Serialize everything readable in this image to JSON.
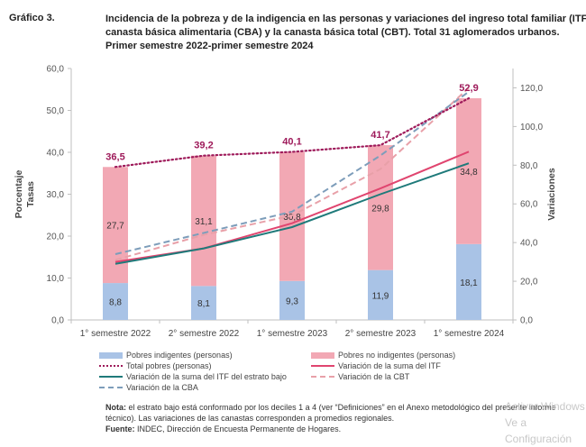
{
  "figure_label": "Gráfico 3.",
  "title_lines": [
    "Incidencia de la pobreza y de la indigencia en las personas y variaciones del ingreso total familiar (ITF), la",
    "canasta básica alimentaria (CBA) y la canasta básica total (CBT). Total 31 aglomerados urbanos.",
    "Primer semestre 2022-primer semestre 2024"
  ],
  "note": {
    "label": "Nota:",
    "text": " el estrato bajo está conformado por los deciles 1 a 4 (ver “Definiciones” en el Anexo metodológico del presente informe técnico). Las variaciones de las canastas corresponden a promedios regionales."
  },
  "source": {
    "label": "Fuente:",
    "text": " INDEC, Dirección de Encuesta Permanente de Hogares."
  },
  "watermark": [
    "Activar Windows",
    "Ve a Configuración"
  ],
  "chart_data": {
    "type": "bar",
    "categories": [
      "1° semestre 2022",
      "2° semestre 2022",
      "1° semestre 2023",
      "2° semestre 2023",
      "1° semestre 2024"
    ],
    "ylabel_left": [
      "Porcentaje",
      "Tasas"
    ],
    "ylabel_right": "Variaciones",
    "y_left": {
      "lim": [
        0,
        60
      ],
      "ticks": [
        "0,0",
        "10,0",
        "20,0",
        "30,0",
        "40,0",
        "50,0",
        "60,0"
      ]
    },
    "y_right": {
      "lim": [
        0,
        130
      ],
      "ticks": [
        "0,0",
        "20,0",
        "40,0",
        "60,0",
        "80,0",
        "100,0",
        "120,0"
      ]
    },
    "bars": [
      {
        "name": "Pobres indigentes (personas)",
        "color": "#a9c3e6",
        "values": [
          8.8,
          8.1,
          9.3,
          11.9,
          18.1
        ],
        "labels": [
          "8,8",
          "8,1",
          "9,3",
          "11,9",
          "18,1"
        ]
      },
      {
        "name": "Pobres no indigentes (personas)",
        "color": "#f2a8b4",
        "values": [
          27.7,
          31.1,
          30.8,
          29.8,
          34.8
        ],
        "labels": [
          "27,7",
          "31,1",
          "30,8",
          "29,8",
          "34,8"
        ]
      }
    ],
    "total": {
      "name": "Total pobres (personas)",
      "color": "#9e1a5a",
      "values": [
        36.5,
        39.2,
        40.1,
        41.7,
        52.9
      ],
      "labels": [
        "36,5",
        "39,2",
        "40,1",
        "41,7",
        "52,9"
      ]
    },
    "lines": [
      {
        "name": "Variación de la suma del ITF",
        "color": "#e0456f",
        "style": "solid",
        "values": [
          30,
          37,
          50,
          68,
          87
        ]
      },
      {
        "name": "Variación de la suma del ITF del estrato bajo",
        "color": "#1f7a7a",
        "style": "solid",
        "values": [
          29,
          37,
          48,
          65,
          81
        ]
      },
      {
        "name": "Variación de la CBT",
        "color": "#e8a0a8",
        "style": "dashed",
        "values": [
          31,
          44,
          54,
          78,
          120
        ]
      },
      {
        "name": "Variación de la CBA",
        "color": "#7d9dba",
        "style": "dashed",
        "values": [
          34,
          45,
          56,
          85,
          118
        ]
      }
    ],
    "legend_position": "bottom",
    "grid": false
  }
}
